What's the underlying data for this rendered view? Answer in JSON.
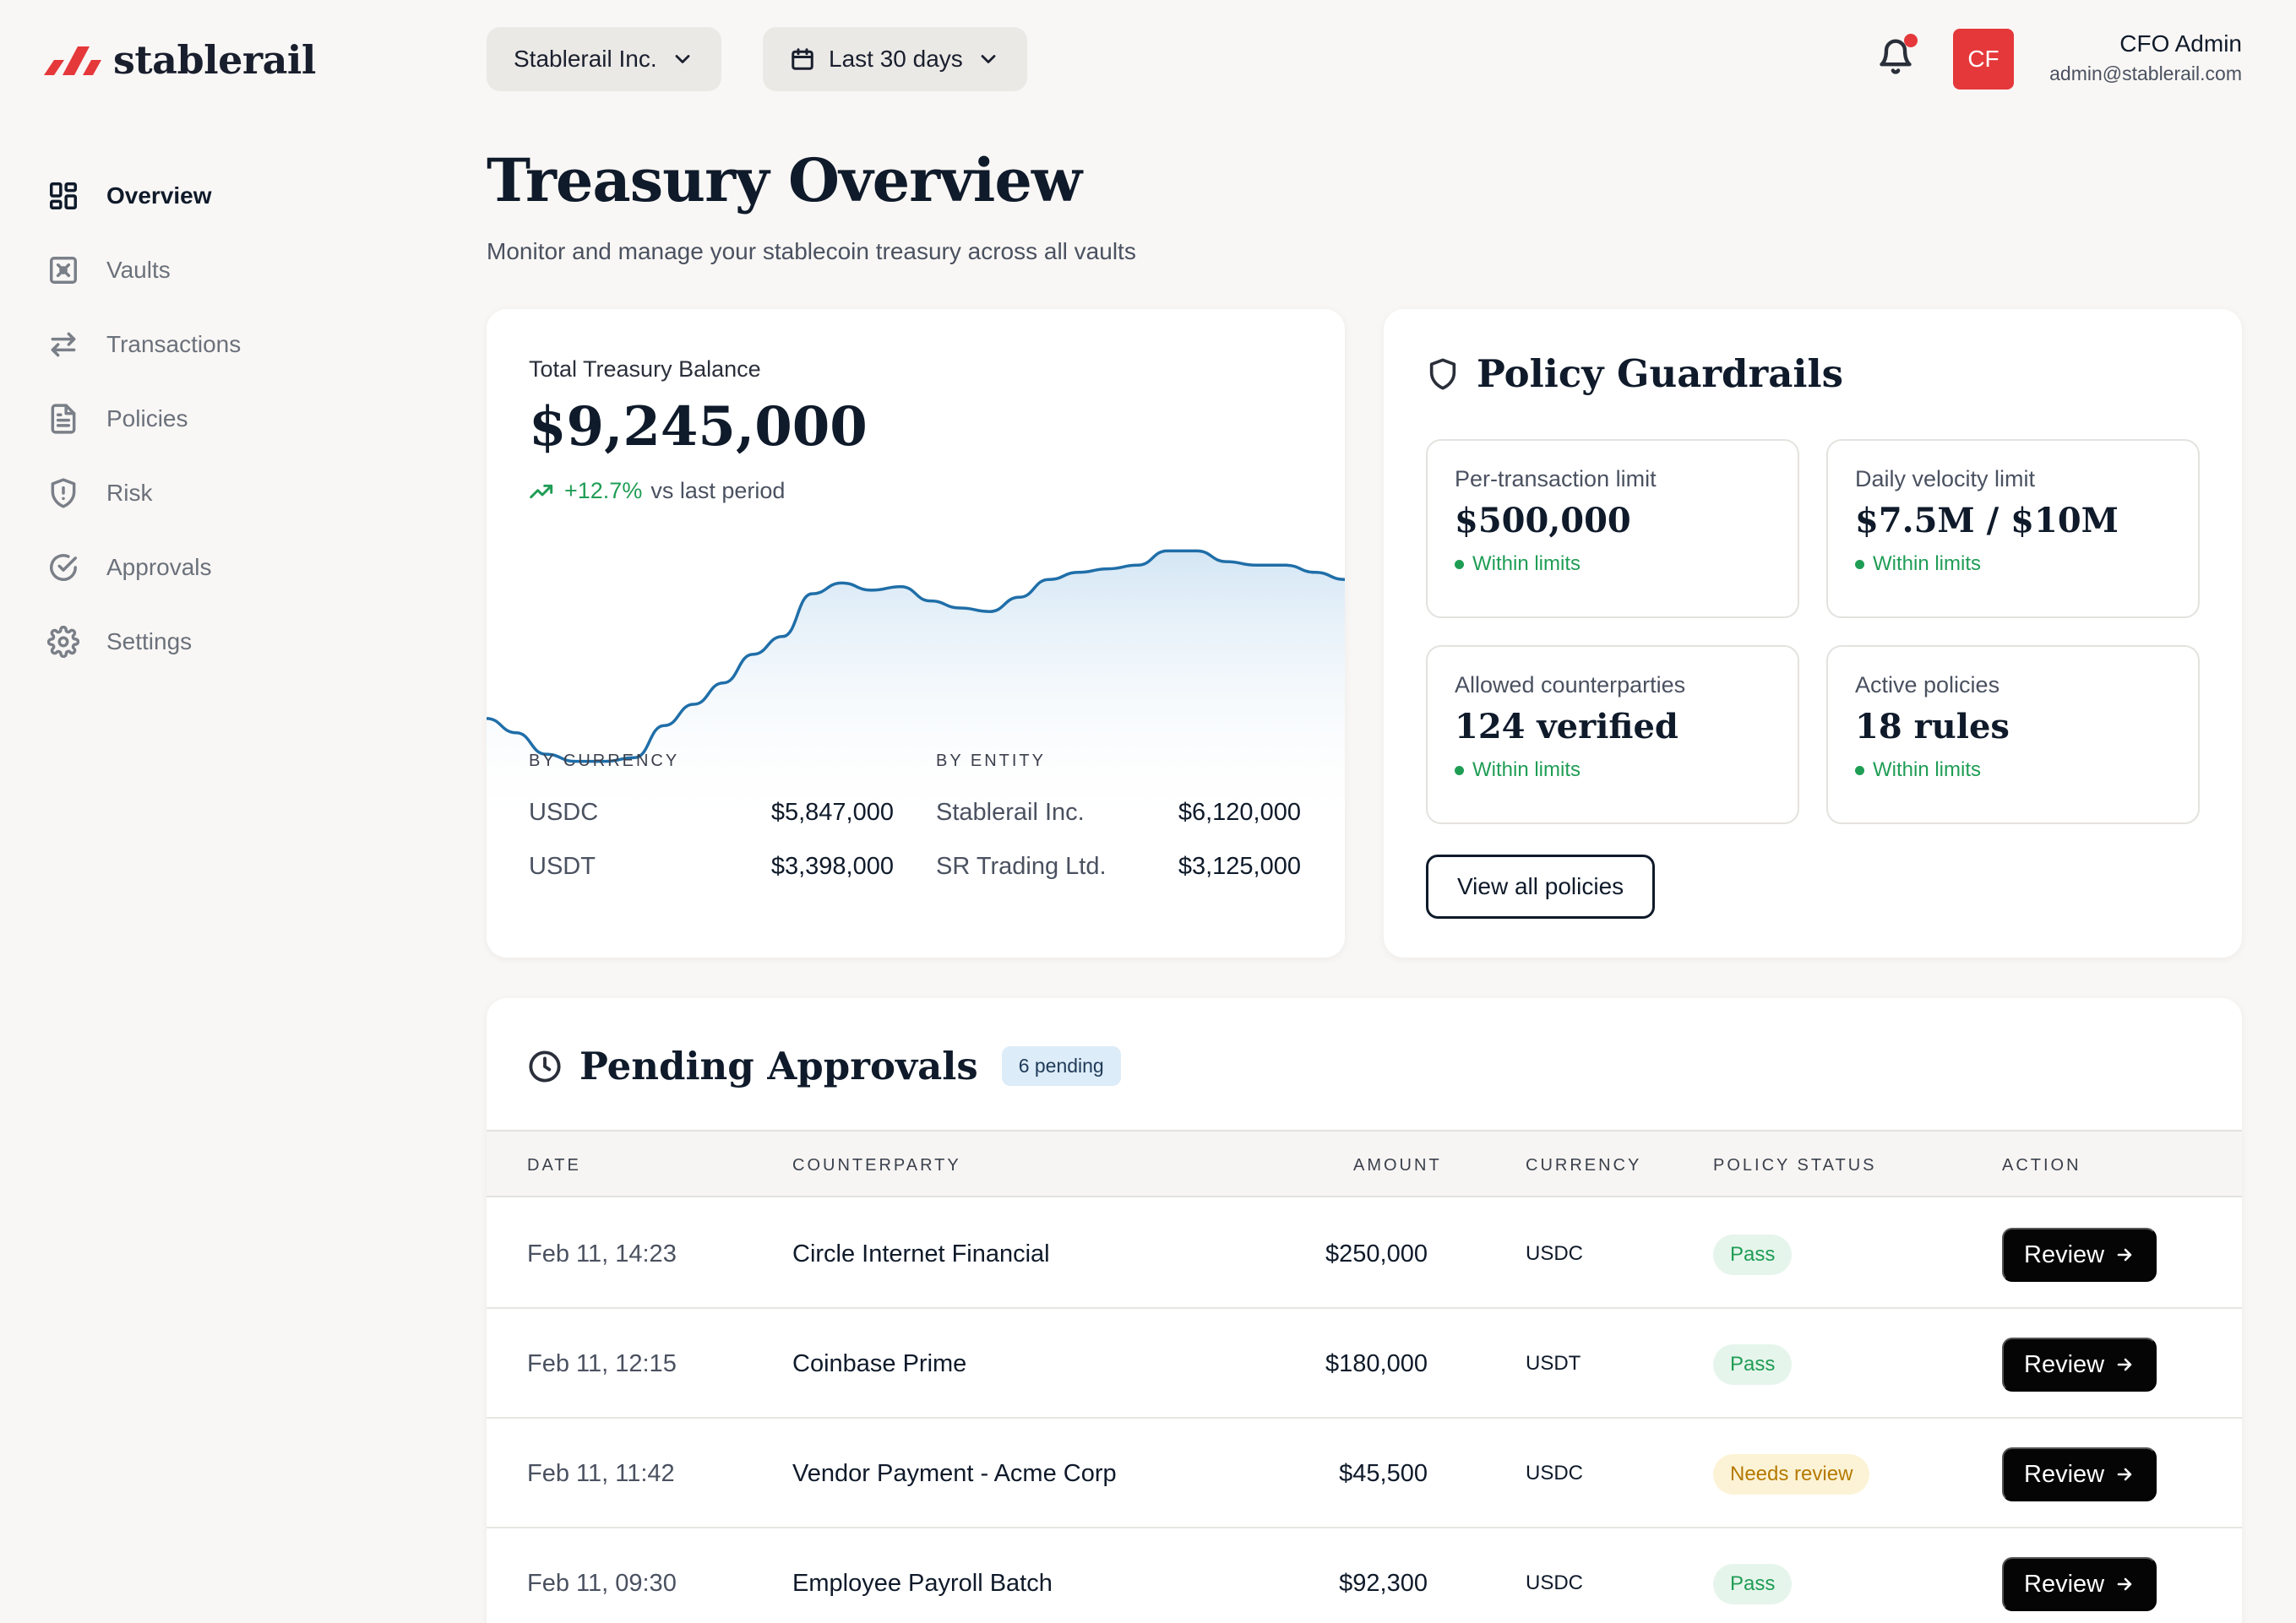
{
  "brand": {
    "name": "stablerail",
    "accent": "#e5383b"
  },
  "sidebar": {
    "items": [
      {
        "label": "Overview",
        "icon": "dashboard-icon",
        "active": true
      },
      {
        "label": "Vaults",
        "icon": "vault-icon",
        "active": false
      },
      {
        "label": "Transactions",
        "icon": "arrows-swap-icon",
        "active": false
      },
      {
        "label": "Policies",
        "icon": "document-icon",
        "active": false
      },
      {
        "label": "Risk",
        "icon": "shield-alert-icon",
        "active": false
      },
      {
        "label": "Approvals",
        "icon": "check-circle-icon",
        "active": false
      },
      {
        "label": "Settings",
        "icon": "gear-icon",
        "active": false
      }
    ]
  },
  "header": {
    "org_selector": "Stablerail Inc.",
    "period_selector": "Last 30 days",
    "avatar_initials": "CF",
    "user_name": "CFO Admin",
    "user_email": "admin@stablerail.com"
  },
  "page": {
    "title": "Treasury Overview",
    "subtitle": "Monitor and manage your stablecoin treasury across all vaults"
  },
  "balance": {
    "label": "Total Treasury Balance",
    "amount": "$9,245,000",
    "change": "+12.7%",
    "change_suffix": "vs last period",
    "by_currency_label": "BY CURRENCY",
    "by_entity_label": "BY ENTITY",
    "by_currency": [
      {
        "name": "USDC",
        "value": "$5,847,000"
      },
      {
        "name": "USDT",
        "value": "$3,398,000"
      }
    ],
    "by_entity": [
      {
        "name": "Stablerail Inc.",
        "value": "$6,120,000"
      },
      {
        "name": "SR Trading Ltd.",
        "value": "$3,125,000"
      }
    ],
    "trend": [
      0.62,
      0.58,
      0.52,
      0.5,
      0.5,
      0.51,
      0.6,
      0.66,
      0.72,
      0.8,
      0.85,
      0.97,
      1.0,
      0.98,
      0.99,
      0.95,
      0.93,
      0.92,
      0.96,
      1.01,
      1.03,
      1.04,
      1.05,
      1.09,
      1.09,
      1.06,
      1.05,
      1.05,
      1.03,
      1.01
    ]
  },
  "policy": {
    "title": "Policy Guardrails",
    "cards": [
      {
        "label": "Per-transaction limit",
        "value": "$500,000",
        "status": "Within limits"
      },
      {
        "label": "Daily velocity limit",
        "value": "$7.5M / $10M",
        "status": "Within limits"
      },
      {
        "label": "Allowed counterparties",
        "value": "124 verified",
        "status": "Within limits"
      },
      {
        "label": "Active policies",
        "value": "18 rules",
        "status": "Within limits"
      }
    ],
    "view_all_label": "View all policies"
  },
  "pending": {
    "title": "Pending Approvals",
    "badge": "6 pending",
    "columns": {
      "date": "DATE",
      "counterparty": "COUNTERPARTY",
      "amount": "AMOUNT",
      "currency": "CURRENCY",
      "status": "POLICY STATUS",
      "action": "ACTION"
    },
    "rows": [
      {
        "date": "Feb 11, 14:23",
        "counterparty": "Circle Internet Financial",
        "amount": "$250,000",
        "currency": "USDC",
        "status": "Pass",
        "status_kind": "pass",
        "action": "Review"
      },
      {
        "date": "Feb 11, 12:15",
        "counterparty": "Coinbase Prime",
        "amount": "$180,000",
        "currency": "USDT",
        "status": "Pass",
        "status_kind": "pass",
        "action": "Review"
      },
      {
        "date": "Feb 11, 11:42",
        "counterparty": "Vendor Payment - Acme Corp",
        "amount": "$45,500",
        "currency": "USDC",
        "status": "Needs review",
        "status_kind": "warn",
        "action": "Review"
      },
      {
        "date": "Feb 11, 09:30",
        "counterparty": "Employee Payroll Batch",
        "amount": "$92,300",
        "currency": "USDC",
        "status": "Pass",
        "status_kind": "pass",
        "action": "Review"
      }
    ]
  }
}
